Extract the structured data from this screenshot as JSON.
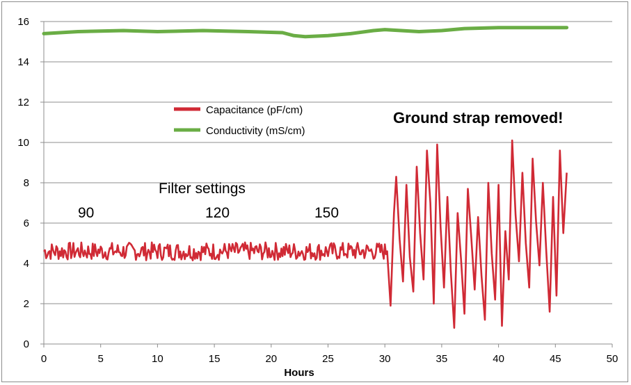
{
  "chart_data": {
    "type": "line",
    "xlabel": "Hours",
    "ylabel": "",
    "xlim": [
      0,
      50
    ],
    "ylim": [
      0,
      16
    ],
    "xticks": [
      0,
      5,
      10,
      15,
      20,
      25,
      30,
      35,
      40,
      45,
      50
    ],
    "yticks": [
      0,
      2,
      4,
      6,
      8,
      10,
      12,
      14,
      16
    ],
    "grid": "horizontal",
    "legend_position": "upper-left-center",
    "annotations": {
      "filter_settings": "Filter settings",
      "filter_90": "90",
      "filter_120": "120",
      "filter_150": "150",
      "ground_strap": "Ground strap removed!"
    },
    "series": [
      {
        "name": "Capacitance (pF/cm)",
        "color": "#d02a35",
        "noise_region": {
          "x_range": [
            0,
            30.2
          ],
          "center": 4.6,
          "amplitude": 0.45
        },
        "x": [
          30.2,
          30.5,
          30.8,
          31.0,
          31.3,
          31.6,
          31.9,
          32.2,
          32.5,
          32.8,
          33.1,
          33.4,
          33.7,
          34.0,
          34.3,
          34.6,
          34.9,
          35.2,
          35.5,
          35.8,
          36.1,
          36.4,
          36.7,
          37.0,
          37.3,
          37.6,
          37.9,
          38.2,
          38.5,
          38.8,
          39.1,
          39.4,
          39.7,
          40.0,
          40.3,
          40.6,
          40.9,
          41.2,
          41.5,
          41.8,
          42.1,
          42.4,
          42.7,
          43.0,
          43.3,
          43.6,
          43.9,
          44.2,
          44.5,
          44.8,
          45.1,
          45.4,
          45.7,
          46.0
        ],
        "y": [
          4.6,
          1.9,
          6.5,
          8.3,
          5.2,
          3.1,
          7.9,
          4.3,
          2.6,
          8.8,
          5.5,
          3.2,
          9.6,
          7.0,
          2.0,
          9.9,
          5.8,
          2.8,
          7.3,
          3.6,
          0.8,
          6.5,
          4.2,
          1.5,
          7.7,
          5.3,
          2.7,
          6.3,
          3.4,
          1.2,
          8.0,
          4.5,
          2.2,
          7.9,
          0.9,
          5.6,
          3.2,
          10.1,
          6.4,
          4.1,
          8.5,
          5.0,
          2.8,
          9.2,
          6.1,
          3.9,
          8.0,
          4.6,
          1.6,
          7.3,
          2.4,
          9.6,
          5.5,
          8.5
        ]
      },
      {
        "name": "Conductivity (mS/cm)",
        "color": "#6aad45",
        "x": [
          0,
          3,
          7,
          10,
          14,
          18,
          21,
          22,
          23,
          25,
          27,
          29,
          30,
          33,
          35,
          37,
          40,
          43,
          46
        ],
        "y": [
          15.4,
          15.5,
          15.55,
          15.5,
          15.55,
          15.5,
          15.45,
          15.3,
          15.25,
          15.3,
          15.4,
          15.55,
          15.6,
          15.5,
          15.55,
          15.65,
          15.7,
          15.7,
          15.7
        ]
      }
    ]
  }
}
